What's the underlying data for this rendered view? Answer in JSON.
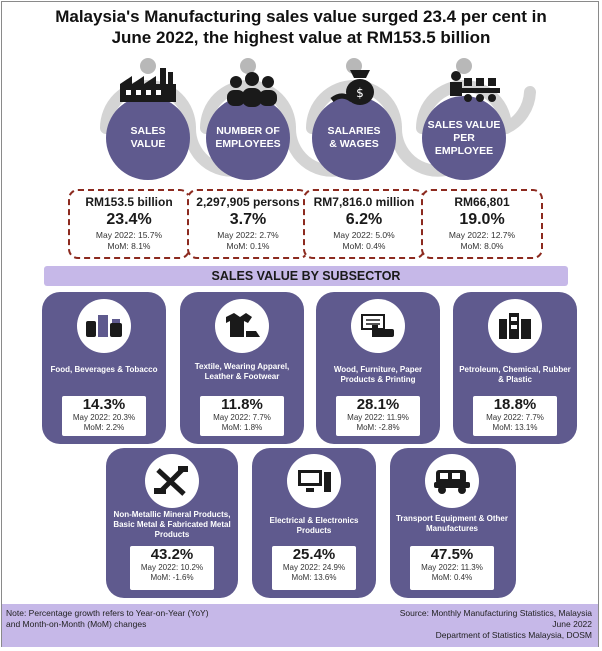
{
  "title": {
    "line1": "Malaysia's Manufacturing sales value surged 23.4 per cent in",
    "line2": "June 2022, the highest value at RM153.5 billion"
  },
  "indicators": [
    {
      "label": "SALES\nVALUE",
      "icon": "factory-icon",
      "value": "RM153.5 billion",
      "yoy": "23.4%",
      "may": "May 2022: 15.7%",
      "mom": "MoM: 8.1%"
    },
    {
      "label": "NUMBER OF\nEMPLOYEES",
      "icon": "people-icon",
      "value": "2,297,905 persons",
      "yoy": "3.7%",
      "may": "May 2022: 2.7%",
      "mom": "MoM: 0.1%"
    },
    {
      "label": "SALARIES\n& WAGES",
      "icon": "money-bag-icon",
      "value": "RM7,816.0 million",
      "yoy": "6.2%",
      "may": "May 2022: 5.0%",
      "mom": "MoM: 0.4%"
    },
    {
      "label": "SALES VALUE\nPER\nEMPLOYEE",
      "icon": "worker-conveyor-icon",
      "value": "RM66,801",
      "yoy": "19.0%",
      "may": "May 2022: 12.7%",
      "mom": "MoM: 8.0%"
    }
  ],
  "banner": "SALES VALUE BY SUBSECTOR",
  "subsectors": [
    {
      "name": "Food, Beverages & Tobacco",
      "pct": "14.3%",
      "may": "May 2022: 20.3%",
      "mom": "MoM: 2.2%",
      "icon": "food-icon"
    },
    {
      "name": "Textile, Wearing Apparel, Leather & Footwear",
      "pct": "11.8%",
      "may": "May 2022: 7.7%",
      "mom": "MoM: 1.8%",
      "icon": "clothing-icon"
    },
    {
      "name": "Wood, Furniture, Paper Products & Printing",
      "pct": "28.1%",
      "may": "May 2022: 11.9%",
      "mom": "MoM: -2.8%",
      "icon": "furniture-icon"
    },
    {
      "name": "Petroleum, Chemical, Rubber & Plastic",
      "pct": "18.8%",
      "may": "May 2022: 7.7%",
      "mom": "MoM: 13.1%",
      "icon": "chemical-icon"
    },
    {
      "name": "Non-Metallic Mineral Products, Basic Metal & Fabricated Metal Products",
      "pct": "43.2%",
      "may": "May 2022: 10.2%",
      "mom": "MoM: -1.6%",
      "icon": "tools-icon"
    },
    {
      "name": "Electrical & Electronics Products",
      "pct": "25.4%",
      "may": "May 2022: 24.9%",
      "mom": "MoM: 13.6%",
      "icon": "computer-icon"
    },
    {
      "name": "Transport Equipment & Other Manufactures",
      "pct": "47.5%",
      "may": "May 2022: 11.3%",
      "mom": "MoM: 0.4%",
      "icon": "vehicle-icon"
    }
  ],
  "footer": {
    "note_line1": "Note: Percentage growth refers to Year-on-Year (YoY)",
    "note_line2": "and Month-on-Month (MoM) changes",
    "source_line1": "Source: Monthly Manufacturing Statistics, Malaysia",
    "source_line2": "June 2022",
    "source_line3": "Department of Statistics Malaysia, DOSM"
  },
  "colors": {
    "accent": "#5f5a8e",
    "banner": "#c6b8e8",
    "card_border": "#8c2a1f",
    "chain": "#d4d4d4"
  }
}
